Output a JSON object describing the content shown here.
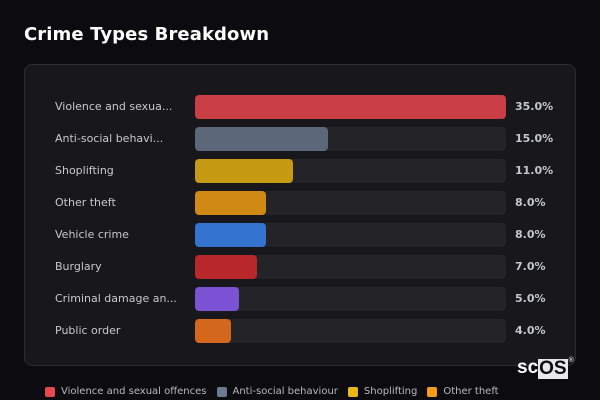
{
  "title": "Crime Types Breakdown",
  "chart_data": {
    "type": "bar",
    "orientation": "horizontal",
    "title": "Crime Types Breakdown",
    "categories": [
      "Violence and sexual offences",
      "Anti-social behaviour",
      "Shoplifting",
      "Other theft",
      "Vehicle crime",
      "Burglary",
      "Criminal damage and arson",
      "Public order"
    ],
    "category_labels_displayed": [
      "Violence and sexua...",
      "Anti-social behavi...",
      "Shoplifting",
      "Other theft",
      "Vehicle crime",
      "Burglary",
      "Criminal damage an...",
      "Public order"
    ],
    "values": [
      35.0,
      15.0,
      11.0,
      8.0,
      8.0,
      7.0,
      5.0,
      4.0
    ],
    "value_labels": [
      "35.0%",
      "15.0%",
      "11.0%",
      "8.0%",
      "8.0%",
      "7.0%",
      "5.0%",
      "4.0%"
    ],
    "colors": [
      "#c93e44",
      "#5c6779",
      "#c69a12",
      "#d08915",
      "#3573d1",
      "#b8272a",
      "#7b52d3",
      "#d3681c"
    ],
    "unit": "%",
    "xlim": [
      0,
      35
    ],
    "grid": false,
    "legend_position": "bottom",
    "xlabel": "",
    "ylabel": ""
  },
  "rows": [
    {
      "label": "Violence and sexua...",
      "value": "35.0%",
      "pct": 100,
      "color": "#c93e44"
    },
    {
      "label": "Anti-social behavi...",
      "value": "15.0%",
      "pct": 42.86,
      "color": "#5c6779"
    },
    {
      "label": "Shoplifting",
      "value": "11.0%",
      "pct": 31.43,
      "color": "#c69a12"
    },
    {
      "label": "Other theft",
      "value": "8.0%",
      "pct": 22.86,
      "color": "#d08915"
    },
    {
      "label": "Vehicle crime",
      "value": "8.0%",
      "pct": 22.86,
      "color": "#3573d1"
    },
    {
      "label": "Burglary",
      "value": "7.0%",
      "pct": 20,
      "color": "#b8272a"
    },
    {
      "label": "Criminal damage an...",
      "value": "5.0%",
      "pct": 14.29,
      "color": "#7b52d3"
    },
    {
      "label": "Public order",
      "value": "4.0%",
      "pct": 11.43,
      "color": "#d3681c"
    }
  ],
  "legend": [
    {
      "label": "Violence and sexual offences",
      "color": "#e5484d"
    },
    {
      "label": "Anti-social behaviour",
      "color": "#6b7a90"
    },
    {
      "label": "Shoplifting",
      "color": "#e8b714"
    },
    {
      "label": "Other theft",
      "color": "#f29c16"
    }
  ],
  "watermark": {
    "left": "sc",
    "boxed": "OS",
    "reg": "®"
  }
}
